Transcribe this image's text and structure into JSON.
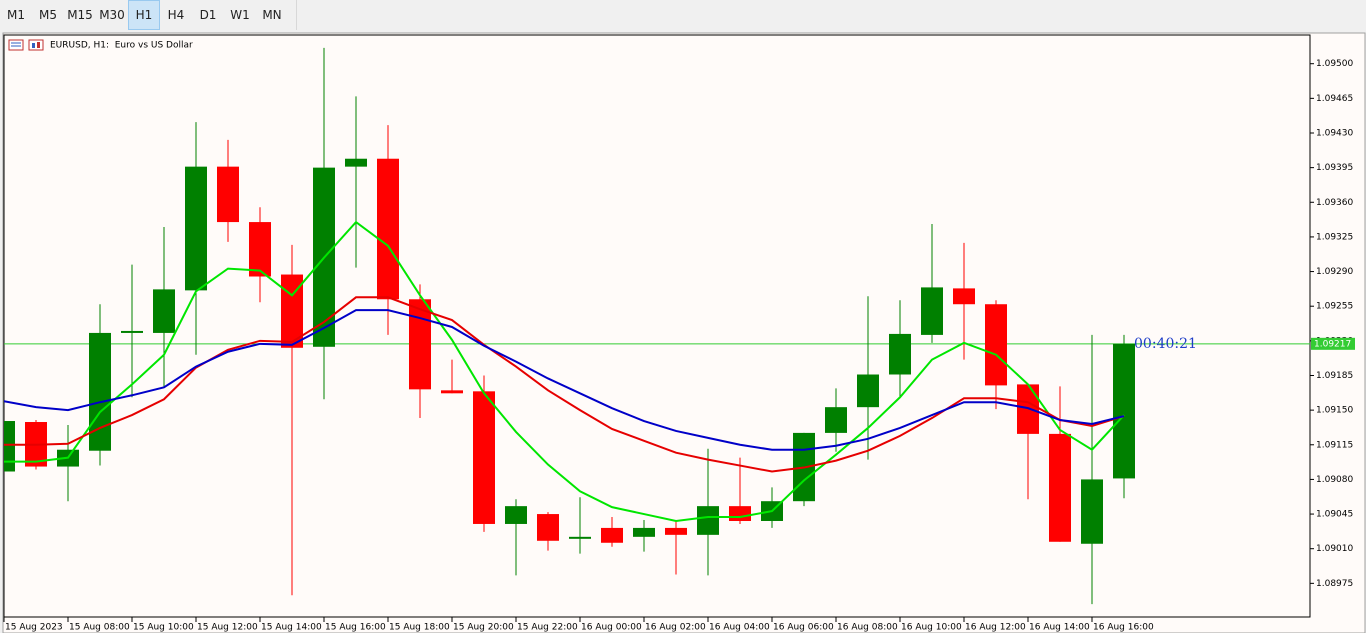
{
  "toolbar": {
    "timeframes": [
      "M1",
      "M5",
      "M15",
      "M30",
      "H1",
      "H4",
      "D1",
      "W1",
      "MN"
    ],
    "active": "H1"
  },
  "chart_data": {
    "type": "candlestick",
    "title": "EURUSD, H1:  Euro vs US Dollar",
    "categories": [
      "15 Aug 2023",
      null,
      "15 Aug 08:00",
      null,
      "15 Aug 10:00",
      null,
      "15 Aug 12:00",
      null,
      "15 Aug 14:00",
      null,
      "15 Aug 16:00",
      null,
      "15 Aug 18:00",
      null,
      "15 Aug 20:00",
      null,
      "15 Aug 22:00",
      null,
      "16 Aug 00:00",
      null,
      "16 Aug 02:00",
      null,
      "16 Aug 04:00",
      null,
      "16 Aug 06:00",
      null,
      "16 Aug 08:00",
      null,
      "16 Aug 10:00",
      null,
      "16 Aug 12:00",
      null,
      "16 Aug 14:00",
      null,
      "16 Aug 16:00",
      null
    ],
    "open": [
      1.09088,
      1.09138,
      1.09093,
      1.09109,
      1.09228,
      1.09228,
      1.09271,
      1.09396,
      1.0934,
      1.09287,
      1.09214,
      1.09396,
      1.09404,
      1.09262,
      1.0917,
      1.09169,
      1.09035,
      1.09045,
      1.0902,
      1.09031,
      1.09022,
      1.09031,
      1.09024,
      1.09053,
      1.09038,
      1.09058,
      1.09127,
      1.09153,
      1.09186,
      1.09226,
      1.09273,
      1.09257,
      1.09176,
      1.09126,
      1.09015,
      1.09081
    ],
    "high": [
      1.09139,
      1.0914,
      1.09135,
      1.09257,
      1.09297,
      1.09335,
      1.09441,
      1.09423,
      1.09355,
      1.09317,
      1.09516,
      1.09467,
      1.09438,
      1.09277,
      1.09201,
      1.09185,
      1.0906,
      1.09047,
      1.09062,
      1.09042,
      1.09039,
      1.09039,
      1.09111,
      1.09102,
      1.09072,
      1.09127,
      1.09172,
      1.09265,
      1.09261,
      1.09338,
      1.09319,
      1.09261,
      1.09176,
      1.09174,
      1.09226,
      1.09226
    ],
    "low": [
      1.09088,
      1.0909,
      1.09058,
      1.09094,
      1.09163,
      1.09173,
      1.09206,
      1.0932,
      1.09259,
      1.08963,
      1.09161,
      1.09294,
      1.09226,
      1.09142,
      1.09167,
      1.09027,
      1.08983,
      1.09008,
      1.09005,
      1.09012,
      1.09007,
      1.08984,
      1.08983,
      1.09035,
      1.09031,
      1.09053,
      1.09108,
      1.091,
      1.09163,
      1.09218,
      1.09201,
      1.09151,
      1.0906,
      1.09017,
      1.08954,
      1.09061
    ],
    "close": [
      1.09139,
      1.09093,
      1.0911,
      1.09228,
      1.0923,
      1.09272,
      1.09396,
      1.0934,
      1.09285,
      1.09213,
      1.09395,
      1.09404,
      1.09262,
      1.09171,
      1.09167,
      1.09035,
      1.09053,
      1.09018,
      1.09022,
      1.09016,
      1.09031,
      1.09024,
      1.09053,
      1.09038,
      1.09058,
      1.09127,
      1.09153,
      1.09186,
      1.09227,
      1.09274,
      1.09257,
      1.09175,
      1.09126,
      1.09017,
      1.0908,
      1.09217
    ],
    "up_color": "#008000",
    "down_color": "#ff0000",
    "lines": [
      {
        "color": "#00e600",
        "values": [
          1.09098,
          1.09098,
          1.09102,
          1.09148,
          1.09176,
          1.09206,
          1.0927,
          1.09293,
          1.09291,
          1.09266,
          1.09304,
          1.0934,
          1.09316,
          1.09266,
          1.09221,
          1.09167,
          1.09128,
          1.09095,
          1.09068,
          1.09052,
          1.09045,
          1.09038,
          1.09042,
          1.09042,
          1.09048,
          1.09079,
          1.09105,
          1.09132,
          1.09163,
          1.09201,
          1.09218,
          1.09206,
          1.09176,
          1.0913,
          1.0911,
          1.09145
        ]
      },
      {
        "color": "#e60000",
        "values": [
          1.09115,
          1.09115,
          1.09116,
          1.09132,
          1.09145,
          1.09161,
          1.09193,
          1.09211,
          1.0922,
          1.09219,
          1.09239,
          1.09264,
          1.09264,
          1.09252,
          1.09241,
          1.09216,
          1.09194,
          1.0917,
          1.0915,
          1.09131,
          1.09119,
          1.09107,
          1.091,
          1.09094,
          1.09088,
          1.09092,
          1.09099,
          1.09109,
          1.09124,
          1.09142,
          1.09162,
          1.09162,
          1.09158,
          1.0914,
          1.09134,
          1.09144
        ]
      },
      {
        "color": "#0000c8",
        "values": [
          1.09159,
          1.09153,
          1.0915,
          1.09158,
          1.09165,
          1.09173,
          1.09194,
          1.09209,
          1.09217,
          1.09216,
          1.09233,
          1.09251,
          1.09251,
          1.09243,
          1.09234,
          1.09215,
          1.09199,
          1.09182,
          1.09167,
          1.09152,
          1.09139,
          1.09129,
          1.09122,
          1.09115,
          1.0911,
          1.0911,
          1.09114,
          1.09121,
          1.09132,
          1.09145,
          1.09158,
          1.09158,
          1.09152,
          1.0914,
          1.09136,
          1.09144
        ]
      }
    ],
    "current_price": 1.09217,
    "timer": "00:40:21",
    "ylim": [
      1.08941,
      1.09529
    ],
    "yticks": [
      {
        "value": 1.095,
        "label": "1.09500"
      },
      {
        "value": 1.09465,
        "label": "1.09465"
      },
      {
        "value": 1.0943,
        "label": "1.09430"
      },
      {
        "value": 1.09395,
        "label": "1.09395"
      },
      {
        "value": 1.0936,
        "label": "1.09360"
      },
      {
        "value": 1.09325,
        "label": "1.09325"
      },
      {
        "value": 1.0929,
        "label": "1.09290"
      },
      {
        "value": 1.09255,
        "label": "1.09255"
      },
      {
        "value": 1.0922,
        "label": "1.09220"
      },
      {
        "value": 1.09185,
        "label": "1.09185"
      },
      {
        "value": 1.0915,
        "label": "1.09150"
      },
      {
        "value": 1.09115,
        "label": "1.09115"
      },
      {
        "value": 1.0908,
        "label": "1.09080"
      },
      {
        "value": 1.09045,
        "label": "1.09045"
      },
      {
        "value": 1.0901,
        "label": "1.09010"
      },
      {
        "value": 1.08975,
        "label": "1.08975"
      }
    ],
    "grid": false
  }
}
